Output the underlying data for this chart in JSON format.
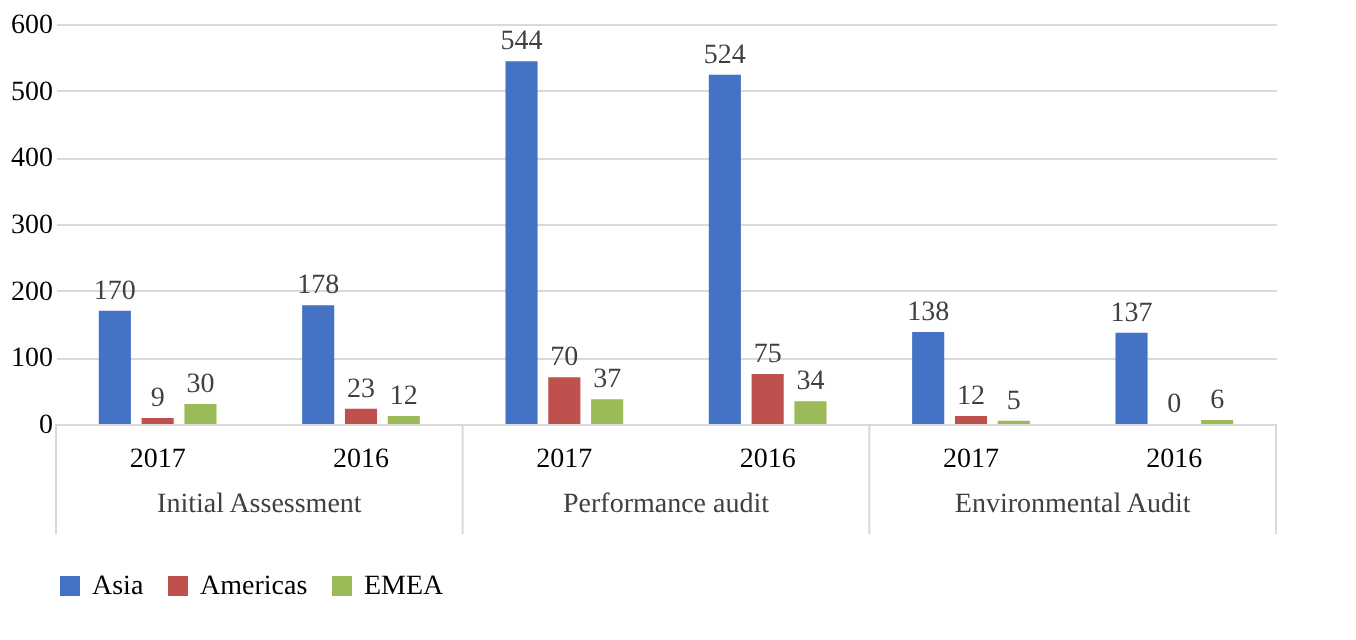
{
  "chart_data": {
    "type": "bar",
    "categories": [
      "2017",
      "2016",
      "2017",
      "2016",
      "2017",
      "2016"
    ],
    "series": [
      {
        "name": "Asia",
        "color": "#4472c4",
        "values": [
          170,
          178,
          544,
          524,
          138,
          137
        ]
      },
      {
        "name": "Americas",
        "color": "#c0504d",
        "values": [
          9,
          23,
          70,
          75,
          12,
          0
        ]
      },
      {
        "name": "EMEA",
        "color": "#9bbb59",
        "values": [
          30,
          12,
          37,
          34,
          5,
          6
        ]
      }
    ],
    "annotations": [
      "Initial Assessment",
      "Performance audit",
      "Environmental Audit"
    ],
    "ylim": [
      0,
      600
    ],
    "yticks": [
      0,
      100,
      200,
      300,
      400,
      500,
      600
    ],
    "grid": "y",
    "legend": "bottom",
    "data_labels": true
  }
}
